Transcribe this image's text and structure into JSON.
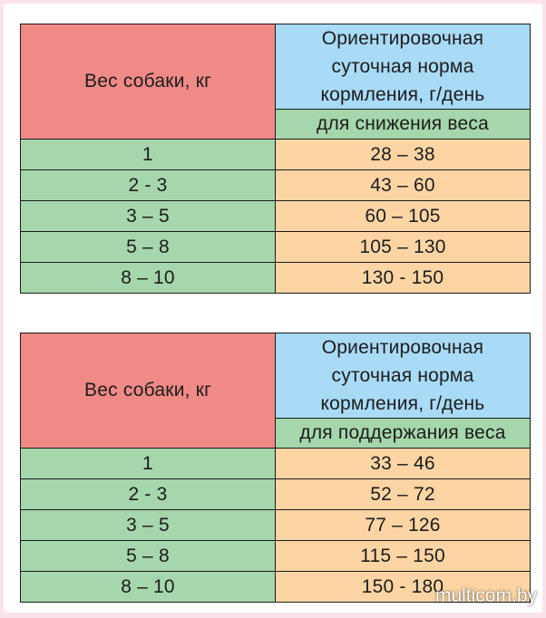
{
  "tables": [
    {
      "weight_header": "Вес собаки, кг",
      "norm_header": [
        "Ориентировочная",
        "суточная норма",
        "кормления, г/день"
      ],
      "sub_header": "для снижения веса",
      "rows": [
        {
          "weight": "1",
          "norm": "28 – 38"
        },
        {
          "weight": "2 - 3",
          "norm": "43 – 60"
        },
        {
          "weight": "3 – 5",
          "norm": "60 – 105"
        },
        {
          "weight": "5 – 8",
          "norm": "105 – 130"
        },
        {
          "weight": "8 – 10",
          "norm": "130 - 150"
        }
      ]
    },
    {
      "weight_header": "Вес собаки, кг",
      "norm_header": [
        "Ориентировочная",
        "суточная норма",
        "кормления, г/день"
      ],
      "sub_header": "для поддержания веса",
      "rows": [
        {
          "weight": "1",
          "norm": "33 – 46"
        },
        {
          "weight": "2 - 3",
          "norm": "52 – 72"
        },
        {
          "weight": "3 – 5",
          "norm": "77 – 126"
        },
        {
          "weight": "5 – 8",
          "norm": "115 – 150"
        },
        {
          "weight": "8 – 10",
          "norm": "150 - 180"
        }
      ]
    }
  ],
  "watermark": "multicom.by",
  "colors": {
    "weight_header": "#f08a86",
    "norm_header": "#a9daf6",
    "green_cells": "#a6d6ab",
    "orange_cells": "#fdd5a4",
    "background": "#fbe3ec"
  }
}
